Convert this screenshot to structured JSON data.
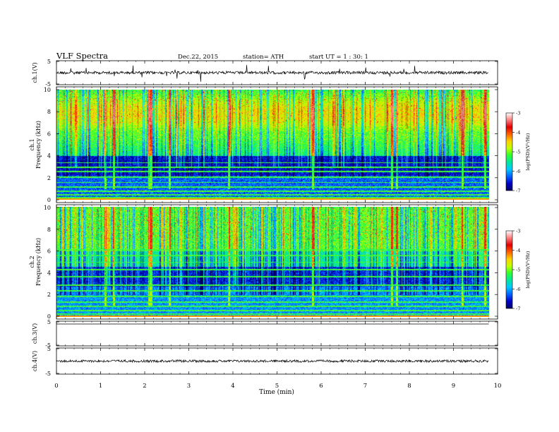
{
  "header": {
    "title": "VLF  Spectra",
    "date": "Dec.22, 2015",
    "station": "station= ATH",
    "start": "start  UT =   1 : 30: 1"
  },
  "colors": {
    "colormap": [
      "#000060",
      "#0000c8",
      "#0060ff",
      "#00c8ff",
      "#00e6a0",
      "#30ff30",
      "#c0ff00",
      "#ffd000",
      "#ff6000",
      "#e00000",
      "#ff8080",
      "#ffffff"
    ]
  },
  "chart_data": {
    "type": "heatmap",
    "x_axis": {
      "label": "Time (min)",
      "range": [
        0,
        10
      ],
      "ticks": [
        "0",
        "1",
        "2",
        "3",
        "4",
        "5",
        "6",
        "7",
        "8",
        "9",
        "10"
      ],
      "data_end_min": 9.8
    },
    "panels": [
      {
        "id": "ch1",
        "type": "line",
        "ylabel": "ch.1(V)",
        "yticks": [
          "5",
          "-5"
        ],
        "ylim": [
          -5,
          5
        ],
        "trace_level_v": 0
      },
      {
        "id": "ch1-spec",
        "type": "heatmap",
        "ylabel": "ch.1\nFrequency (kHz)",
        "yticks": [
          "10",
          "8",
          "6",
          "4",
          "2",
          "0"
        ],
        "ylim": [
          0,
          10
        ],
        "colorbar": {
          "label": "log(PSD)(V²/Hz)",
          "ticks": [
            "-3",
            "-4",
            "-5",
            "-6",
            "-7"
          ],
          "range": [
            -7,
            -3
          ]
        }
      },
      {
        "id": "ch2-spec",
        "type": "heatmap",
        "ylabel": "ch.2\nFrequency (kHz)",
        "yticks": [
          "10",
          "8",
          "6",
          "4",
          "2",
          "0"
        ],
        "ylim": [
          0,
          10
        ],
        "colorbar": {
          "label": "log(PSD)(V²/Hz)",
          "ticks": [
            "-3",
            "-4",
            "-5",
            "-6",
            "-7"
          ],
          "range": [
            -7,
            -3
          ]
        }
      },
      {
        "id": "ch3",
        "type": "line",
        "ylabel": "ch.3(V)",
        "yticks": [
          "5",
          "-5"
        ],
        "ylim": [
          -5,
          5
        ],
        "trace_level_v": 5
      },
      {
        "id": "ch4",
        "type": "line",
        "ylabel": "ch.4(V)",
        "yticks": [
          "5",
          "-5"
        ],
        "ylim": [
          -5,
          5
        ],
        "trace_level_v": 0
      }
    ],
    "strong_bursts_min": [
      1.1,
      1.3,
      2.1,
      2.15,
      2.55,
      3.9,
      5.8,
      7.6,
      7.7,
      9.2,
      9.7
    ]
  }
}
